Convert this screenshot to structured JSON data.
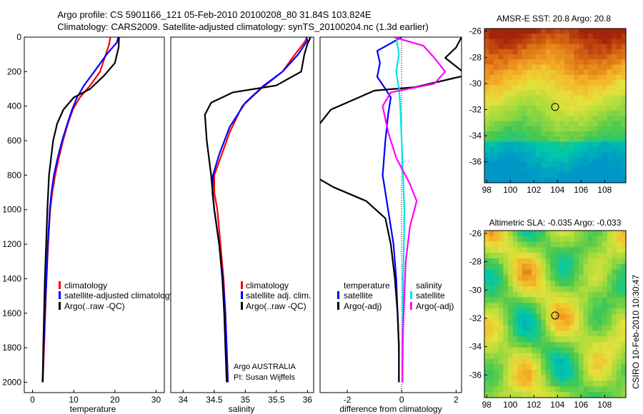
{
  "title_line1": "Argo profile: CS 5901166_121 05-Feb-2010 20100208_80 31.84S 103.824E",
  "title_line2": "Climatology: CARS2009. Satellite-adjusted climatology: synTS_20100204.nc (1.3d earlier)",
  "side_label": "CSIRO 10-Feb-2010 10:30:47",
  "colors": {
    "climatology": "#ff0000",
    "satellite": "#0000ff",
    "argo": "#000000",
    "salinity_satellite": "#00e5e5",
    "salinity_argo": "#ff00ff"
  },
  "chart_data": [
    {
      "type": "line",
      "id": "temperature",
      "xlabel": "temperature",
      "xlim": [
        -2,
        32
      ],
      "ylim": [
        0,
        2060
      ],
      "y_reversed": true,
      "xticks": [
        0,
        10,
        20,
        30
      ],
      "yticks": [
        0,
        200,
        400,
        600,
        800,
        1000,
        1200,
        1400,
        1600,
        1800,
        2000
      ],
      "legend": [
        "climatology",
        "satellite-adjusted climatology",
        "Argo(..raw -QC)"
      ],
      "series": [
        {
          "name": "climatology",
          "color": "#ff0000",
          "points": [
            [
              18.9,
              0
            ],
            [
              18.5,
              50
            ],
            [
              17.8,
              100
            ],
            [
              16.4,
              200
            ],
            [
              14.0,
              280
            ],
            [
              11.5,
              350
            ],
            [
              9.8,
              420
            ],
            [
              8.6,
              500
            ],
            [
              7.4,
              600
            ],
            [
              6.4,
              700
            ],
            [
              5.5,
              800
            ],
            [
              4.8,
              900
            ],
            [
              4.3,
              1000
            ],
            [
              3.8,
              1200
            ],
            [
              3.4,
              1400
            ],
            [
              3.1,
              1600
            ],
            [
              2.8,
              1800
            ],
            [
              2.5,
              2000
            ]
          ]
        },
        {
          "name": "satellite-adjusted climatology",
          "color": "#0000ff",
          "points": [
            [
              20.8,
              0
            ],
            [
              20.5,
              30
            ],
            [
              18.0,
              100
            ],
            [
              15.0,
              200
            ],
            [
              12.5,
              280
            ],
            [
              10.8,
              350
            ],
            [
              9.6,
              420
            ],
            [
              8.5,
              500
            ],
            [
              7.2,
              600
            ],
            [
              6.1,
              700
            ],
            [
              5.2,
              800
            ],
            [
              4.6,
              900
            ],
            [
              4.2,
              1000
            ],
            [
              3.7,
              1200
            ],
            [
              3.4,
              1400
            ],
            [
              3.0,
              1600
            ],
            [
              2.7,
              1800
            ],
            [
              2.4,
              2000
            ]
          ]
        },
        {
          "name": "Argo(..raw -QC)",
          "color": "#000000",
          "points": [
            [
              21.0,
              0
            ],
            [
              20.9,
              60
            ],
            [
              20.0,
              150
            ],
            [
              17.5,
              220
            ],
            [
              14.0,
              300
            ],
            [
              10.0,
              350
            ],
            [
              7.5,
              420
            ],
            [
              6.0,
              500
            ],
            [
              5.0,
              600
            ],
            [
              4.5,
              700
            ],
            [
              4.0,
              800
            ],
            [
              3.6,
              1000
            ],
            [
              3.3,
              1200
            ],
            [
              3.0,
              1400
            ],
            [
              2.8,
              1600
            ],
            [
              2.6,
              1800
            ],
            [
              2.5,
              2000
            ]
          ]
        }
      ]
    },
    {
      "type": "line",
      "id": "salinity",
      "xlabel": "salinity",
      "xlim": [
        33.8,
        36.1
      ],
      "ylim": [
        0,
        2060
      ],
      "y_reversed": true,
      "xticks": [
        34,
        34.5,
        35,
        35.5,
        36
      ],
      "legend": [
        "climatology",
        "satellite adj. clim.",
        "Argo(..raw -QC)"
      ],
      "annotation": [
        "Argo AUSTRALIA",
        "PI: Susan Wijffels"
      ],
      "series": [
        {
          "name": "climatology",
          "color": "#ff0000",
          "points": [
            [
              36.0,
              0
            ],
            [
              35.95,
              30
            ],
            [
              35.8,
              100
            ],
            [
              35.6,
              200
            ],
            [
              35.25,
              300
            ],
            [
              34.95,
              400
            ],
            [
              34.75,
              550
            ],
            [
              34.6,
              700
            ],
            [
              34.5,
              800
            ],
            [
              34.5,
              900
            ],
            [
              34.55,
              1000
            ],
            [
              34.6,
              1200
            ],
            [
              34.65,
              1400
            ],
            [
              34.68,
              1600
            ],
            [
              34.7,
              1800
            ],
            [
              34.72,
              2000
            ]
          ]
        },
        {
          "name": "satellite adj. clim.",
          "color": "#0000ff",
          "points": [
            [
              35.98,
              0
            ],
            [
              36.0,
              20
            ],
            [
              35.85,
              100
            ],
            [
              35.6,
              200
            ],
            [
              35.3,
              280
            ],
            [
              35.0,
              380
            ],
            [
              34.75,
              520
            ],
            [
              34.58,
              680
            ],
            [
              34.48,
              800
            ],
            [
              34.47,
              900
            ],
            [
              34.5,
              1000
            ],
            [
              34.58,
              1200
            ],
            [
              34.64,
              1400
            ],
            [
              34.68,
              1600
            ],
            [
              34.7,
              1800
            ],
            [
              34.72,
              2000
            ]
          ]
        },
        {
          "name": "Argo(..raw -QC)",
          "color": "#000000",
          "points": [
            [
              36.05,
              0
            ],
            [
              36.0,
              40
            ],
            [
              35.95,
              100
            ],
            [
              35.9,
              200
            ],
            [
              35.5,
              280
            ],
            [
              34.8,
              320
            ],
            [
              34.45,
              380
            ],
            [
              34.35,
              450
            ],
            [
              34.38,
              600
            ],
            [
              34.45,
              800
            ],
            [
              34.5,
              1000
            ],
            [
              34.58,
              1200
            ],
            [
              34.63,
              1400
            ],
            [
              34.66,
              1600
            ],
            [
              34.68,
              1800
            ],
            [
              34.7,
              2000
            ]
          ]
        }
      ]
    },
    {
      "type": "line",
      "id": "difference",
      "xlabel": "difference from climatology",
      "xlim": [
        -3.0,
        2.2
      ],
      "ylim": [
        0,
        2060
      ],
      "y_reversed": true,
      "xticks": [
        -2,
        0,
        2
      ],
      "zero_line": 0,
      "legend_temperature_header": "temperature",
      "legend_salinity_header": "salinity",
      "legend_temperature": [
        "satellite",
        "Argo(-adj)"
      ],
      "legend_salinity": [
        "satellite",
        "Argo(-adj)"
      ],
      "series": [
        {
          "name": "temperature satellite",
          "color": "#0000ff",
          "points": [
            [
              0.0,
              0
            ],
            [
              -0.9,
              80
            ],
            [
              -0.8,
              150
            ],
            [
              -0.9,
              230
            ],
            [
              -0.6,
              300
            ],
            [
              -0.4,
              350
            ],
            [
              -0.5,
              450
            ],
            [
              -0.6,
              600
            ],
            [
              -0.7,
              800
            ],
            [
              -0.5,
              1000
            ],
            [
              -0.3,
              1200
            ],
            [
              -0.2,
              1400
            ],
            [
              -0.15,
              1600
            ],
            [
              -0.1,
              1800
            ],
            [
              -0.1,
              2000
            ]
          ]
        },
        {
          "name": "temperature Argo(-adj)",
          "color": "#000000",
          "points": [
            [
              2.2,
              0
            ],
            [
              2.0,
              60
            ],
            [
              1.6,
              120
            ],
            [
              2.4,
              220
            ],
            [
              0.5,
              290
            ],
            [
              -1.0,
              310
            ],
            [
              -2.6,
              420
            ],
            [
              -3.5,
              600
            ],
            [
              -3.5,
              780
            ],
            [
              -2.5,
              870
            ],
            [
              -1.3,
              950
            ],
            [
              -0.6,
              1050
            ],
            [
              -0.4,
              1200
            ],
            [
              -0.25,
              1400
            ],
            [
              -0.15,
              1600
            ],
            [
              -0.1,
              1800
            ],
            [
              -0.1,
              2000
            ]
          ]
        },
        {
          "name": "salinity satellite",
          "color": "#00e5e5",
          "points": [
            [
              -0.2,
              0
            ],
            [
              -0.1,
              100
            ],
            [
              -0.2,
              200
            ],
            [
              -0.1,
              300
            ],
            [
              -0.05,
              400
            ],
            [
              0.0,
              600
            ],
            [
              0.05,
              800
            ],
            [
              0.1,
              1000
            ],
            [
              0.08,
              1200
            ],
            [
              0.05,
              1400
            ],
            [
              0.05,
              1600
            ],
            [
              0.03,
              1800
            ],
            [
              0.03,
              2000
            ]
          ]
        },
        {
          "name": "salinity Argo(-adj)",
          "color": "#ff00ff",
          "points": [
            [
              -0.3,
              0
            ],
            [
              0.8,
              50
            ],
            [
              1.2,
              120
            ],
            [
              1.6,
              200
            ],
            [
              1.2,
              270
            ],
            [
              -0.4,
              320
            ],
            [
              -0.7,
              400
            ],
            [
              -0.5,
              550
            ],
            [
              -0.2,
              700
            ],
            [
              0.3,
              850
            ],
            [
              0.55,
              950
            ],
            [
              0.3,
              1100
            ],
            [
              0.15,
              1300
            ],
            [
              0.1,
              1500
            ],
            [
              0.05,
              1700
            ],
            [
              0.03,
              1900
            ],
            [
              0.03,
              2000
            ]
          ]
        }
      ]
    },
    {
      "type": "heatmap",
      "id": "sst_map",
      "title": "AMSR-E SST: 20.8  Argo: 20.8",
      "xlim": [
        97.8,
        109.8
      ],
      "ylim": [
        -37.6,
        -25.8
      ],
      "xticks": [
        98,
        100,
        102,
        104,
        106,
        108
      ],
      "yticks": [
        -26,
        -28,
        -30,
        -32,
        -34,
        -36
      ],
      "marker": {
        "lon": 103.8,
        "lat": -31.8
      }
    },
    {
      "type": "heatmap",
      "id": "sla_map",
      "title": "Altimetric SLA: -0.035  Argo: -0.033",
      "xlim": [
        97.8,
        109.8
      ],
      "ylim": [
        -37.6,
        -25.8
      ],
      "xticks": [
        98,
        100,
        102,
        104,
        106,
        108
      ],
      "yticks": [
        -26,
        -28,
        -30,
        -32,
        -34,
        -36
      ],
      "marker": {
        "lon": 103.8,
        "lat": -31.8
      }
    }
  ]
}
